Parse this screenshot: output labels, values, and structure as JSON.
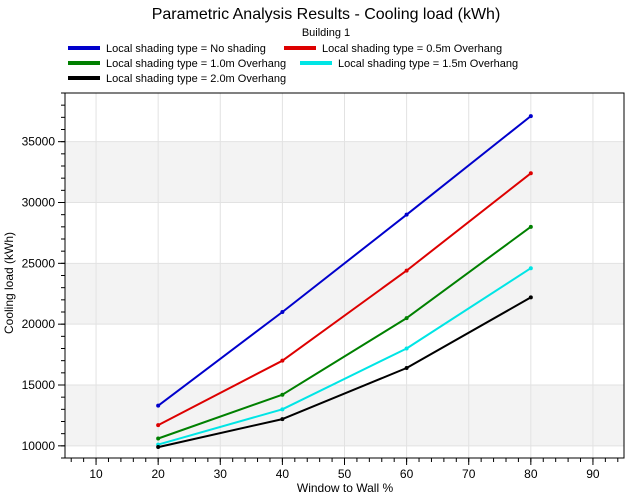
{
  "chart_data": {
    "type": "line",
    "title": "Parametric Analysis Results -  Cooling load (kWh)",
    "subtitle": "Building 1",
    "xlabel": "Window to Wall %",
    "ylabel": "Cooling load (kWh)",
    "xlim": [
      5,
      95
    ],
    "ylim": [
      9000,
      39000
    ],
    "xticks": [
      10,
      20,
      30,
      40,
      50,
      60,
      70,
      80,
      90
    ],
    "yticks": [
      10000,
      15000,
      20000,
      25000,
      30000,
      35000
    ],
    "grid": true,
    "legend_position": "top",
    "x": [
      20,
      40,
      60,
      80
    ],
    "series": [
      {
        "name": "Local shading type = No shading",
        "color": "#0000cc",
        "values": [
          13300,
          21000,
          29000,
          37100
        ]
      },
      {
        "name": "Local shading type = 0.5m Overhang",
        "color": "#dd0000",
        "values": [
          11700,
          17000,
          24400,
          32400
        ]
      },
      {
        "name": "Local shading type = 1.0m Overhang",
        "color": "#008000",
        "values": [
          10600,
          14200,
          20500,
          28000
        ]
      },
      {
        "name": "Local shading type = 1.5m Overhang",
        "color": "#00e5e5",
        "values": [
          10100,
          13000,
          18000,
          24600
        ]
      },
      {
        "name": "Local shading type = 2.0m Overhang",
        "color": "#000000",
        "values": [
          9900,
          12200,
          16400,
          22200
        ]
      }
    ]
  }
}
